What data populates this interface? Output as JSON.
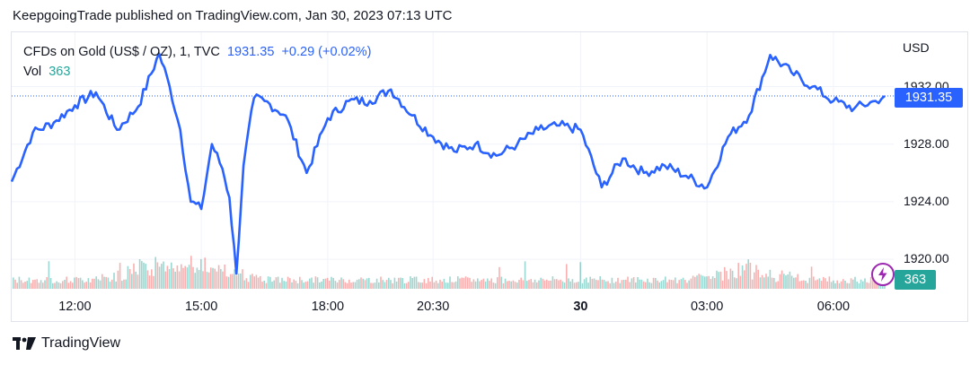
{
  "header": {
    "published": "KeepgoingTrade published on TradingView.com, Jan 30, 2023 07:13 UTC"
  },
  "legend": {
    "symbol": "CFDs on Gold (US$ / OZ), 1, TVC",
    "price": "1931.35",
    "change": "+0.29 (+0.02%)",
    "vol_label": "Vol",
    "vol_value": "363"
  },
  "axis": {
    "currency": "USD",
    "price_label": "1931.35",
    "volume_label": "363"
  },
  "footer": {
    "brand": "TradingView"
  },
  "colors": {
    "line": "#2962ff",
    "vol_up": "#26a69a",
    "vol_down": "#ef5350",
    "alert": "#9c27b0"
  },
  "chart_data": {
    "type": "line",
    "x_ticks": [
      "12:00",
      "15:00",
      "18:00",
      "20:30",
      "30",
      "03:00",
      "06:00"
    ],
    "y_ticks": [
      "1920.00",
      "1924.00",
      "1928.00",
      "1932.00"
    ],
    "ylim": [
      1918.2,
      1935.4
    ],
    "last_price": 1931.35,
    "x": [
      "10:30",
      "11:00",
      "11:30",
      "12:00",
      "12:30",
      "13:00",
      "13:30",
      "14:00",
      "14:15",
      "14:30",
      "14:45",
      "15:00",
      "15:15",
      "15:30",
      "15:40",
      "15:50",
      "16:00",
      "16:15",
      "16:30",
      "17:00",
      "17:30",
      "18:00",
      "18:30",
      "19:00",
      "19:30",
      "20:00",
      "20:30",
      "21:00",
      "21:30",
      "22:00",
      "22:30",
      "23:00",
      "23:30",
      "00:00",
      "00:30",
      "01:00",
      "01:30",
      "02:00",
      "02:30",
      "03:00",
      "03:30",
      "04:00",
      "04:30",
      "05:00",
      "05:30",
      "06:00",
      "06:30",
      "07:00",
      "07:13"
    ],
    "y": [
      1925.4,
      1928.8,
      1929.5,
      1930.7,
      1931.6,
      1929.0,
      1930.6,
      1934.3,
      1932.0,
      1929.0,
      1924.0,
      1923.5,
      1928.0,
      1926.3,
      1924.3,
      1919.0,
      1926.5,
      1931.2,
      1931.0,
      1930.0,
      1926.0,
      1929.8,
      1931.0,
      1931.0,
      1931.8,
      1930.0,
      1928.5,
      1927.5,
      1928.0,
      1927.2,
      1928.0,
      1929.0,
      1929.3,
      1929.0,
      1925.0,
      1927.0,
      1926.0,
      1926.5,
      1925.8,
      1925.0,
      1928.5,
      1930.0,
      1934.2,
      1933.0,
      1932.0,
      1931.0,
      1930.5,
      1931.0,
      1931.35
    ],
    "volume": {
      "last": 363,
      "peak_times": [
        "13:45",
        "15:00",
        "04:00"
      ]
    }
  }
}
